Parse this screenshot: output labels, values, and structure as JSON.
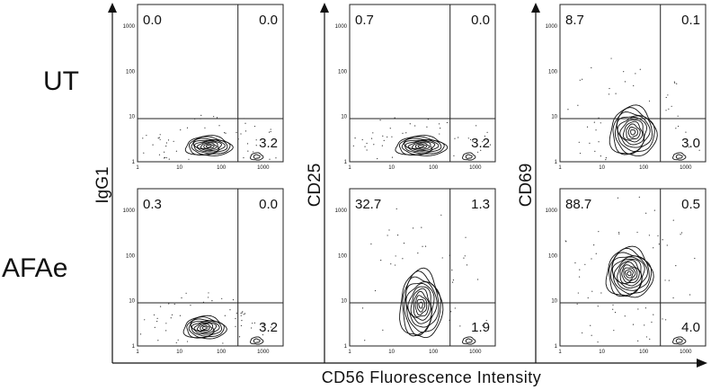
{
  "chart_data": {
    "type": "contour",
    "title": "",
    "xlabel": "CD56 Fluorescence Intensity",
    "row_labels": [
      "UT",
      "AFAe"
    ],
    "column_ylabels": [
      "IgG1",
      "CD25",
      "CD69"
    ],
    "axis_scale": "log",
    "xlim": [
      1,
      3000
    ],
    "ylim": [
      1,
      3000
    ],
    "x_ticks": [
      "1",
      "10",
      "100",
      "1000"
    ],
    "y_ticks": [
      "1",
      "10",
      "100",
      "1000"
    ],
    "gate": {
      "x": 250,
      "y": 9
    },
    "panels": [
      {
        "row": "UT",
        "ylabel": "IgG1",
        "quadrants": {
          "upper_left": "0.0",
          "upper_right": "0.0",
          "lower_right": "3.2"
        },
        "populations": [
          {
            "x": 50,
            "y": 2.2,
            "spread_x": 0.55,
            "spread_y": 0.22,
            "levels": 9
          }
        ],
        "minor": [
          {
            "x": 700,
            "y": 1.3,
            "spread_x": 0.15,
            "spread_y": 0.08,
            "levels": 2
          }
        ]
      },
      {
        "row": "UT",
        "ylabel": "CD25",
        "quadrants": {
          "upper_left": "0.7",
          "upper_right": "0.0",
          "lower_right": "3.2"
        },
        "populations": [
          {
            "x": 50,
            "y": 2.2,
            "spread_x": 0.6,
            "spread_y": 0.22,
            "levels": 9
          }
        ],
        "minor": [
          {
            "x": 700,
            "y": 1.3,
            "spread_x": 0.15,
            "spread_y": 0.08,
            "levels": 2
          }
        ]
      },
      {
        "row": "UT",
        "ylabel": "CD69",
        "quadrants": {
          "upper_left": "8.7",
          "upper_right": "0.1",
          "lower_right": "3.0"
        },
        "populations": [
          {
            "x": 55,
            "y": 4.5,
            "spread_x": 0.55,
            "spread_y": 0.55,
            "levels": 10
          }
        ],
        "minor": [
          {
            "x": 700,
            "y": 1.3,
            "spread_x": 0.15,
            "spread_y": 0.08,
            "levels": 2
          }
        ]
      },
      {
        "row": "AFAe",
        "ylabel": "IgG1",
        "quadrants": {
          "upper_left": "0.3",
          "upper_right": "0.0",
          "lower_right": "3.2"
        },
        "populations": [
          {
            "x": 40,
            "y": 2.5,
            "spread_x": 0.5,
            "spread_y": 0.25,
            "levels": 9
          }
        ],
        "minor": [
          {
            "x": 700,
            "y": 1.3,
            "spread_x": 0.15,
            "spread_y": 0.08,
            "levels": 2
          }
        ]
      },
      {
        "row": "AFAe",
        "ylabel": "CD25",
        "quadrants": {
          "upper_left": "32.7",
          "upper_right": "1.3",
          "lower_right": "1.9"
        },
        "populations": [
          {
            "x": 50,
            "y": 8,
            "spread_x": 0.5,
            "spread_y": 0.75,
            "levels": 11
          }
        ],
        "minor": [
          {
            "x": 700,
            "y": 1.3,
            "spread_x": 0.15,
            "spread_y": 0.08,
            "levels": 2
          }
        ]
      },
      {
        "row": "AFAe",
        "ylabel": "CD69",
        "quadrants": {
          "upper_left": "88.7",
          "upper_right": "0.5",
          "lower_right": "4.0"
        },
        "populations": [
          {
            "x": 45,
            "y": 40,
            "spread_x": 0.55,
            "spread_y": 0.55,
            "levels": 12
          }
        ],
        "minor": [
          {
            "x": 700,
            "y": 1.3,
            "spread_x": 0.15,
            "spread_y": 0.08,
            "levels": 2
          }
        ]
      }
    ]
  }
}
